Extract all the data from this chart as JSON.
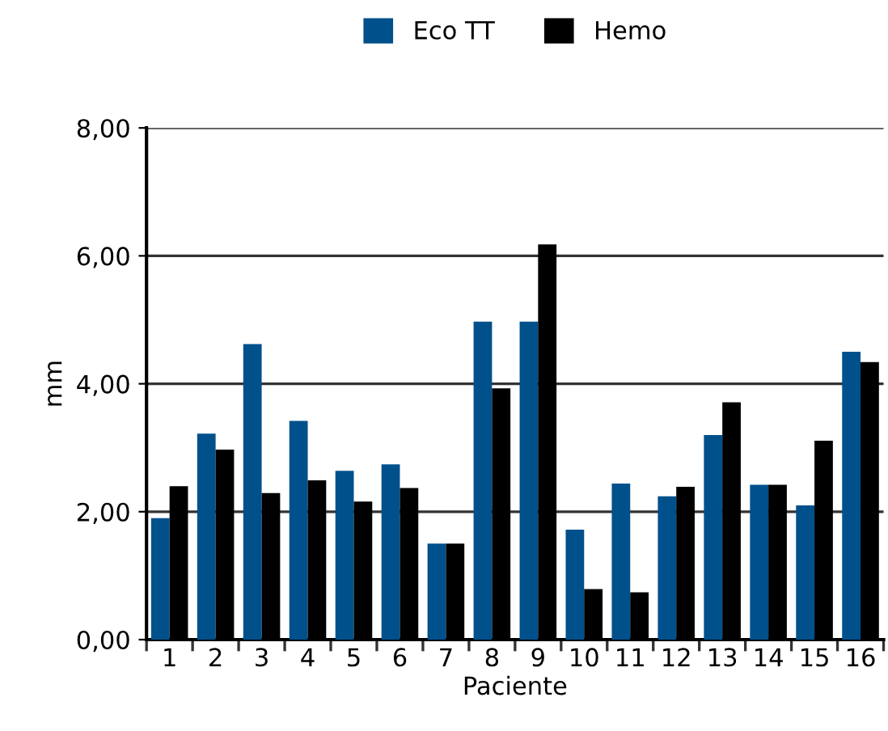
{
  "chart_data": {
    "type": "bar",
    "xlabel": "Paciente",
    "ylabel": "mm",
    "categories": [
      "1",
      "2",
      "3",
      "4",
      "5",
      "6",
      "7",
      "8",
      "9",
      "10",
      "11",
      "12",
      "13",
      "14",
      "15",
      "16"
    ],
    "series": [
      {
        "name": "Eco TT",
        "color": "#00508c",
        "values": [
          1.9,
          3.22,
          4.62,
          3.42,
          2.64,
          2.74,
          1.5,
          4.97,
          4.97,
          1.72,
          2.44,
          2.24,
          3.2,
          2.42,
          2.1,
          4.5
        ]
      },
      {
        "name": "Hemo",
        "color": "#000000",
        "values": [
          2.4,
          2.97,
          2.29,
          2.49,
          2.16,
          2.37,
          1.5,
          3.93,
          6.18,
          0.79,
          0.74,
          2.39,
          3.71,
          2.42,
          3.11,
          4.34
        ]
      }
    ],
    "ylim": [
      0,
      8
    ],
    "yticks": [
      {
        "value": 0,
        "label": "0,00"
      },
      {
        "value": 2,
        "label": "2,00"
      },
      {
        "value": 4,
        "label": "4,00"
      },
      {
        "value": 6,
        "label": "6,00"
      },
      {
        "value": 8,
        "label": "8,00"
      }
    ],
    "grid": "y",
    "legend": "top"
  }
}
